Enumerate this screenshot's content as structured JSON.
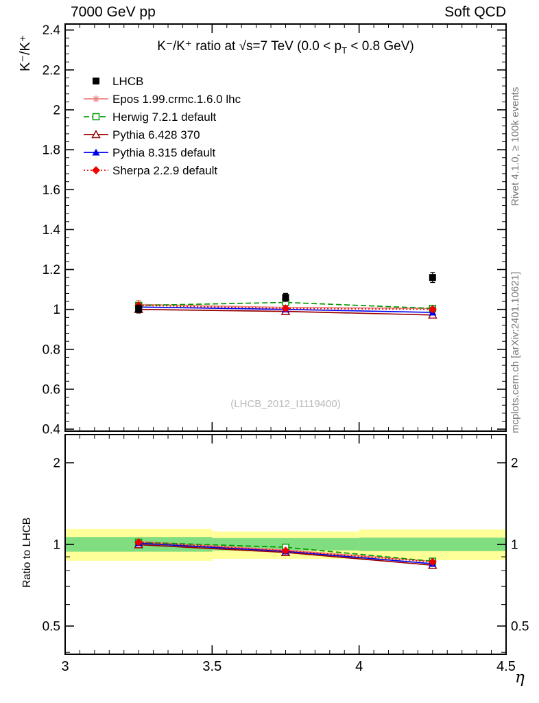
{
  "header": {
    "left": "7000 GeV pp",
    "right": "Soft QCD"
  },
  "side_notes": {
    "top": "Rivet 4.1.0, ≥ 100k events",
    "bottom": "mcplots.cern.ch [arXiv:2401.10621]"
  },
  "watermark": "(LHCB_2012_I1119400)",
  "chart_data": {
    "type": "line",
    "title": {
      "pre": "K⁻/K⁺ ratio at √s=7 TeV (0.0 < p",
      "sub": "T",
      "post": " < 0.8 GeV)"
    },
    "xlabel": "η",
    "ylabel_main": "K⁻/K⁺",
    "ylabel_ratio": "Ratio to LHCB",
    "x": [
      3.25,
      3.75,
      4.25
    ],
    "x_axis": {
      "min": 3.0,
      "max": 4.5,
      "major": [
        3.0,
        3.5,
        4.0,
        4.5
      ],
      "labels": [
        "3",
        "3.5",
        "4",
        "4.5"
      ],
      "minor_step": 0.05
    },
    "y_main": {
      "min": 0.39,
      "max": 2.43,
      "scale": "linear",
      "major": [
        0.4,
        0.6,
        0.8,
        1.0,
        1.2,
        1.4,
        1.6,
        1.8,
        2.0,
        2.2,
        2.4
      ],
      "labels": [
        "0.4",
        "0.6",
        "0.8",
        "1",
        "1.2",
        "1.4",
        "1.6",
        "1.8",
        "2",
        "2.2",
        "2.4"
      ],
      "minor_step": 0.04
    },
    "y_ratio": {
      "min": 0.39,
      "max": 2.54,
      "scale": "log",
      "major": [
        0.5,
        1.0,
        2.0
      ],
      "labels": [
        "0.5",
        "1",
        "2"
      ],
      "minor": [
        0.4,
        0.6,
        0.7,
        0.8,
        0.9
      ]
    },
    "reference": {
      "name": "LHCB",
      "marker": "square_filled",
      "color": "#000000",
      "values": [
        1.002,
        1.06,
        1.16
      ],
      "yerr": [
        0.02,
        0.02,
        0.025
      ]
    },
    "series": [
      {
        "name": "Epos 1.99.crmc.1.6.0 lhc",
        "color": "#f08080",
        "line": "solid",
        "marker": "star_open",
        "values": [
          1.025,
          1.01,
          1.005
        ],
        "yerr": [
          0.02,
          0.015,
          0.015
        ],
        "ratio": [
          1.025,
          0.953,
          0.866
        ],
        "ratio_yerr": [
          0.02,
          0.015,
          0.015
        ]
      },
      {
        "name": "Herwig 7.2.1 default",
        "color": "#009900",
        "line": "dashed",
        "marker": "square_open",
        "values": [
          1.02,
          1.035,
          1.005
        ],
        "yerr": [
          0.01,
          0.01,
          0.01
        ],
        "ratio": [
          1.018,
          0.976,
          0.867
        ],
        "ratio_yerr": [
          0.01,
          0.01,
          0.012
        ]
      },
      {
        "name": "Pythia 6.428 370",
        "color": "#990000",
        "line": "solid",
        "marker": "triangle_open",
        "values": [
          1.0,
          0.99,
          0.972
        ],
        "yerr": [
          0.012,
          0.012,
          0.012
        ],
        "ratio": [
          0.998,
          0.934,
          0.838
        ],
        "ratio_yerr": [
          0.012,
          0.012,
          0.012
        ]
      },
      {
        "name": "Pythia 8.315 default",
        "color": "#0000ee",
        "line": "solid",
        "marker": "triangle_filled",
        "values": [
          1.012,
          1.0,
          0.985
        ],
        "yerr": [
          0.01,
          0.01,
          0.01
        ],
        "ratio": [
          1.01,
          0.943,
          0.849
        ],
        "ratio_yerr": [
          0.01,
          0.01,
          0.01
        ]
      },
      {
        "name": "Sherpa 2.2.9 default",
        "color": "#ee0000",
        "line": "dotted",
        "marker": "diamond_filled",
        "values": [
          1.02,
          1.005,
          1.0
        ],
        "yerr": [
          0.012,
          0.012,
          0.012
        ],
        "ratio": [
          1.018,
          0.948,
          0.862
        ],
        "ratio_yerr": [
          0.012,
          0.012,
          0.012
        ]
      }
    ],
    "bands": {
      "bins": [
        [
          3.0,
          3.5
        ],
        [
          3.5,
          4.0
        ],
        [
          4.0,
          4.5
        ]
      ],
      "yellow": [
        [
          0.87,
          1.14
        ],
        [
          0.885,
          1.115
        ],
        [
          0.875,
          1.135
        ]
      ],
      "green": [
        [
          0.94,
          1.065
        ],
        [
          0.95,
          1.055
        ],
        [
          0.945,
          1.06
        ]
      ],
      "yellow_color": "#ffff99",
      "green_color": "#80dd80"
    },
    "legend_position": "top-left",
    "grid": false
  }
}
